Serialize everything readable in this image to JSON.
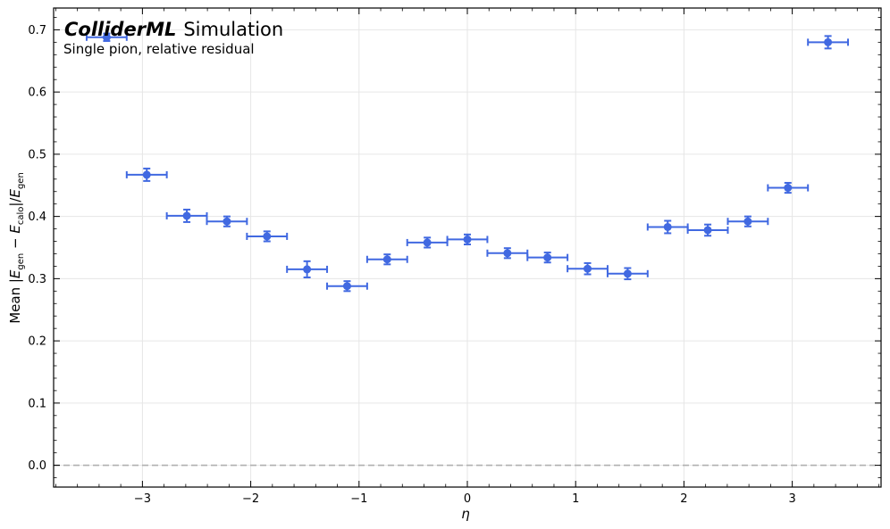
{
  "chart_data": {
    "type": "scatter",
    "title_brand": "ColliderML",
    "title_rest": "Simulation",
    "subtitle": "Single pion, relative residual",
    "xlabel": "η",
    "ylabel": "Mean |E_gen − E_calo|/E_gen",
    "xlim": [
      -3.82,
      3.82
    ],
    "ylim": [
      -0.035,
      0.735
    ],
    "xticks": [
      -3,
      -2,
      -1,
      0,
      1,
      2,
      3
    ],
    "xtick_labels": [
      "−3",
      "−2",
      "−1",
      "0",
      "1",
      "2",
      "3"
    ],
    "yticks": [
      0.0,
      0.1,
      0.2,
      0.3,
      0.4,
      0.5,
      0.6,
      0.7
    ],
    "ytick_labels": [
      "0.0",
      "0.1",
      "0.2",
      "0.3",
      "0.4",
      "0.5",
      "0.6",
      "0.7"
    ],
    "grid": true,
    "reference_line": {
      "y": 0.0,
      "style": "dashed",
      "color": "#b0b0b0"
    },
    "marker_color": "#4169e1",
    "series": [
      {
        "x_err": 0.185,
        "points": [
          {
            "x": -3.33,
            "y": 0.688,
            "yerr": 0.006
          },
          {
            "x": -2.96,
            "y": 0.467,
            "yerr": 0.01
          },
          {
            "x": -2.59,
            "y": 0.401,
            "yerr": 0.01
          },
          {
            "x": -2.22,
            "y": 0.392,
            "yerr": 0.008
          },
          {
            "x": -1.85,
            "y": 0.368,
            "yerr": 0.008
          },
          {
            "x": -1.48,
            "y": 0.315,
            "yerr": 0.013
          },
          {
            "x": -1.11,
            "y": 0.288,
            "yerr": 0.008
          },
          {
            "x": -0.74,
            "y": 0.331,
            "yerr": 0.008
          },
          {
            "x": -0.37,
            "y": 0.358,
            "yerr": 0.008
          },
          {
            "x": 0.0,
            "y": 0.363,
            "yerr": 0.008
          },
          {
            "x": 0.37,
            "y": 0.341,
            "yerr": 0.008
          },
          {
            "x": 0.74,
            "y": 0.334,
            "yerr": 0.008
          },
          {
            "x": 1.11,
            "y": 0.316,
            "yerr": 0.009
          },
          {
            "x": 1.48,
            "y": 0.308,
            "yerr": 0.009
          },
          {
            "x": 1.85,
            "y": 0.383,
            "yerr": 0.01
          },
          {
            "x": 2.22,
            "y": 0.378,
            "yerr": 0.009
          },
          {
            "x": 2.59,
            "y": 0.392,
            "yerr": 0.008
          },
          {
            "x": 2.96,
            "y": 0.446,
            "yerr": 0.008
          },
          {
            "x": 3.33,
            "y": 0.68,
            "yerr": 0.01
          }
        ]
      }
    ]
  }
}
